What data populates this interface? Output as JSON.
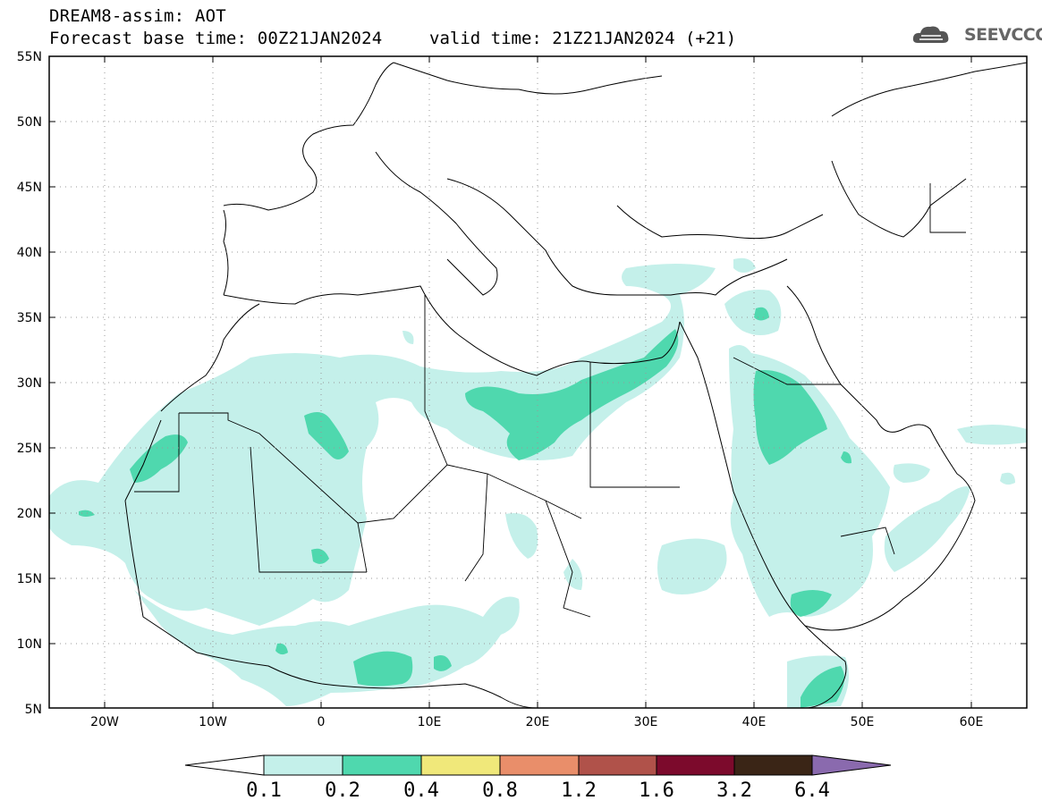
{
  "header": {
    "line1": "DREAM8-assim: AOT",
    "line2_base": "Forecast base time: 00Z21JAN2024",
    "line2_valid": "valid time: 21Z21JAN2024 (+21)"
  },
  "logo": {
    "text": "SEEVCCC",
    "icon": "cloud-icon"
  },
  "map": {
    "lat_labels": [
      "55N",
      "50N",
      "45N",
      "40N",
      "35N",
      "30N",
      "25N",
      "20N",
      "15N",
      "10N",
      "5N"
    ],
    "lon_labels": [
      "20W",
      "10W",
      "0",
      "10E",
      "20E",
      "30E",
      "40E",
      "50E",
      "60E"
    ],
    "lon_range": [
      -25,
      65
    ],
    "lat_range": [
      5,
      55
    ]
  },
  "colorbar": {
    "labels": [
      "0.1",
      "0.2",
      "0.4",
      "0.8",
      "1.2",
      "1.6",
      "3.2",
      "6.4"
    ],
    "colors": [
      "#c4f0ea",
      "#4fd8ae",
      "#f0e87a",
      "#e98e6a",
      "#b0524a",
      "#7c0a2c",
      "#3a2516",
      "#8a6aae"
    ]
  }
}
